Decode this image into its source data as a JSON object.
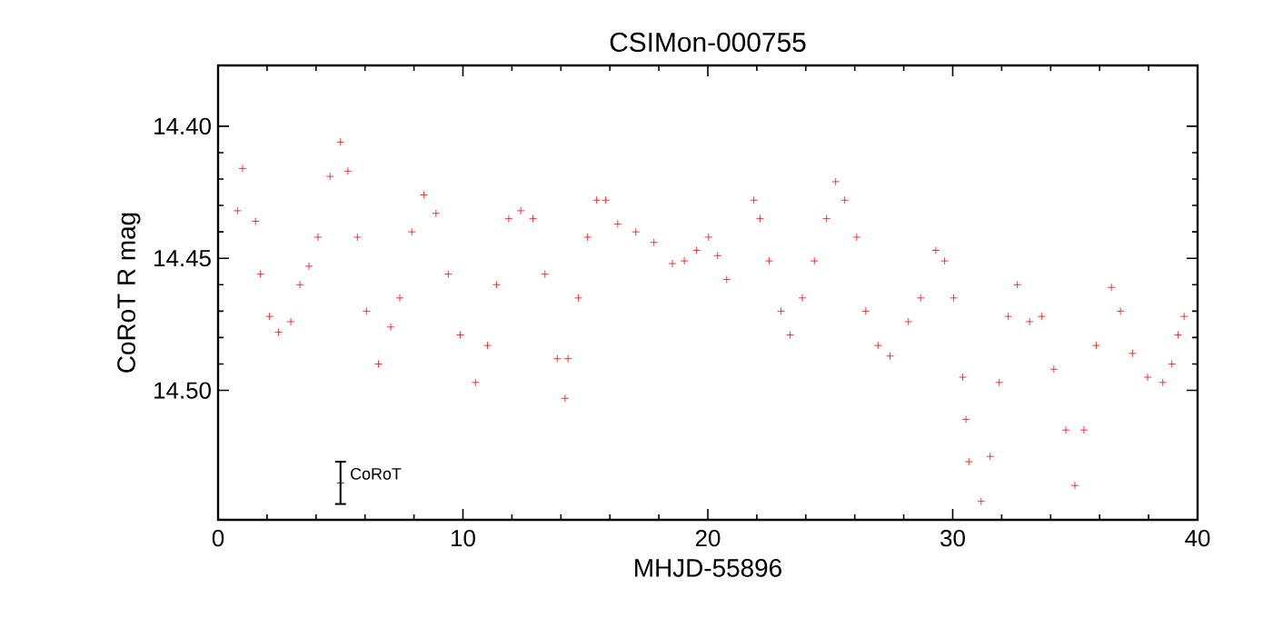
{
  "chart_data": {
    "type": "scatter",
    "title": "CSIMon-000755",
    "xlabel": "MHJD-55896",
    "ylabel": "CoRoT R mag",
    "xlim": [
      0,
      40
    ],
    "xticks": [
      0,
      10,
      20,
      30,
      40
    ],
    "ylim": [
      14.549,
      14.377
    ],
    "yticks": [
      {
        "value": 14.4,
        "label": "14.40"
      },
      {
        "value": 14.45,
        "label": "14.45"
      },
      {
        "value": 14.5,
        "label": "14.50"
      }
    ],
    "marker": "cross",
    "series": [
      {
        "color": "#ff0000",
        "x": [
          0.79,
          1.0,
          1.53,
          1.73,
          2.1,
          2.47,
          2.97,
          3.34,
          3.71,
          4.08,
          4.57,
          5.0,
          5.3,
          5.69,
          6.06,
          6.55,
          7.05,
          7.42,
          7.91,
          8.41,
          8.9,
          9.4,
          9.89,
          10.51,
          11.0,
          11.37,
          11.87,
          12.36,
          12.86,
          13.35,
          13.85,
          14.17,
          14.29,
          14.71,
          15.09,
          15.46,
          15.83,
          16.32,
          17.06,
          17.8,
          18.55,
          19.04,
          19.54,
          20.03,
          20.4,
          20.77,
          21.88,
          22.13,
          22.5,
          22.99,
          23.36,
          23.86,
          24.35,
          24.85,
          25.22,
          25.59,
          26.08,
          26.45,
          26.95,
          27.44,
          28.19,
          28.69,
          29.31,
          29.67,
          30.04,
          30.41,
          30.54,
          30.66,
          31.16,
          31.53,
          31.9,
          32.27,
          32.64,
          33.14,
          33.63,
          34.13,
          34.62,
          34.99,
          35.36,
          35.86,
          36.48,
          36.85,
          37.34,
          37.96,
          38.58,
          38.95,
          39.2,
          39.45
        ],
        "values": [
          14.432,
          14.416,
          14.436,
          14.456,
          14.472,
          14.478,
          14.474,
          14.46,
          14.453,
          14.442,
          14.419,
          14.406,
          14.417,
          14.442,
          14.47,
          14.49,
          14.476,
          14.465,
          14.44,
          14.426,
          14.433,
          14.456,
          14.479,
          14.497,
          14.483,
          14.46,
          14.435,
          14.432,
          14.435,
          14.456,
          14.488,
          14.503,
          14.488,
          14.465,
          14.442,
          14.428,
          14.428,
          14.437,
          14.44,
          14.444,
          14.452,
          14.451,
          14.447,
          14.442,
          14.449,
          14.458,
          14.428,
          14.435,
          14.451,
          14.47,
          14.479,
          14.465,
          14.451,
          14.435,
          14.421,
          14.428,
          14.442,
          14.47,
          14.483,
          14.487,
          14.474,
          14.465,
          14.447,
          14.451,
          14.465,
          14.495,
          14.511,
          14.527,
          14.542,
          14.525,
          14.497,
          14.472,
          14.46,
          14.474,
          14.472,
          14.492,
          14.515,
          14.536,
          14.515,
          14.483,
          14.461,
          14.47,
          14.486,
          14.495,
          14.497,
          14.49,
          14.479,
          14.472
        ]
      },
      {
        "name": "CoRoT",
        "color": "#000000",
        "x": [
          5
        ],
        "values": [
          14.535
        ],
        "errors": [
          [
            14.527,
            14.543
          ]
        ]
      }
    ]
  }
}
